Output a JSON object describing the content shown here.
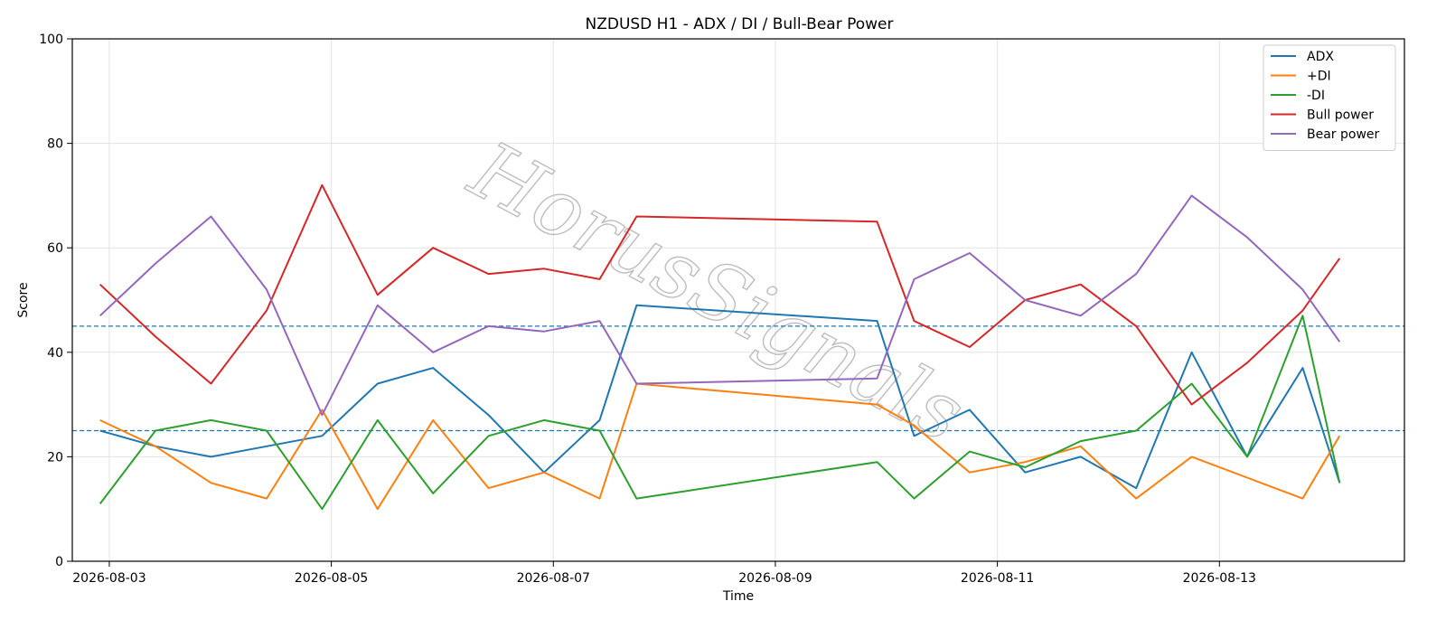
{
  "chart_data": {
    "type": "line",
    "title": "NZDUSD H1 - ADX / DI / Bull-Bear Power",
    "xlabel": "Time",
    "ylabel": "Score",
    "ylim": [
      0,
      100
    ],
    "xlim": [
      "2026-08-02T16:00",
      "2026-08-14T16:00"
    ],
    "yticks": [
      "0",
      "20",
      "40",
      "60",
      "80",
      "100"
    ],
    "xticks": [
      "2026-08-03",
      "2026-08-05",
      "2026-08-07",
      "2026-08-09",
      "2026-08-11",
      "2026-08-13"
    ],
    "grid": true,
    "legend_position": "top-right",
    "watermark": "HorusSignals",
    "hlines": [
      {
        "y": 45,
        "style": "dashed",
        "color": "#1f77b4"
      },
      {
        "y": 25,
        "style": "dashed",
        "color": "#1f77b4"
      }
    ],
    "x": [
      "2026-08-02T22:00",
      "2026-08-03T10:00",
      "2026-08-03T22:00",
      "2026-08-04T10:00",
      "2026-08-04T22:00",
      "2026-08-05T10:00",
      "2026-08-05T22:00",
      "2026-08-06T10:00",
      "2026-08-06T22:00",
      "2026-08-07T10:00",
      "2026-08-07T18:00",
      "2026-08-09T22:00",
      "2026-08-10T06:00",
      "2026-08-10T18:00",
      "2026-08-11T06:00",
      "2026-08-11T18:00",
      "2026-08-12T06:00",
      "2026-08-12T18:00",
      "2026-08-13T06:00",
      "2026-08-13T18:00",
      "2026-08-14T02:00"
    ],
    "series": [
      {
        "name": "ADX",
        "color": "#1f77b4",
        "values": [
          25,
          22,
          20,
          22,
          24,
          34,
          37,
          28,
          17,
          27,
          49,
          46,
          24,
          29,
          17,
          20,
          14,
          40,
          20,
          37,
          15
        ]
      },
      {
        "name": "+DI",
        "color": "#ff7f0e",
        "values": [
          27,
          22,
          15,
          12,
          29,
          10,
          27,
          14,
          17,
          12,
          34,
          30,
          26,
          17,
          19,
          22,
          12,
          20,
          16,
          12,
          24
        ]
      },
      {
        "name": "-DI",
        "color": "#2ca02c",
        "values": [
          11,
          25,
          27,
          25,
          10,
          27,
          13,
          24,
          27,
          25,
          12,
          19,
          12,
          21,
          18,
          23,
          25,
          34,
          20,
          47,
          15
        ]
      },
      {
        "name": "Bull power",
        "color": "#d62728",
        "values": [
          53,
          43,
          34,
          48,
          72,
          51,
          60,
          55,
          56,
          54,
          66,
          65,
          46,
          41,
          50,
          53,
          45,
          30,
          38,
          48,
          58
        ]
      },
      {
        "name": "Bear power",
        "color": "#9467bd",
        "values": [
          47,
          57,
          66,
          52,
          28,
          49,
          40,
          45,
          44,
          46,
          34,
          35,
          54,
          59,
          50,
          47,
          55,
          70,
          62,
          52,
          42
        ]
      }
    ]
  }
}
